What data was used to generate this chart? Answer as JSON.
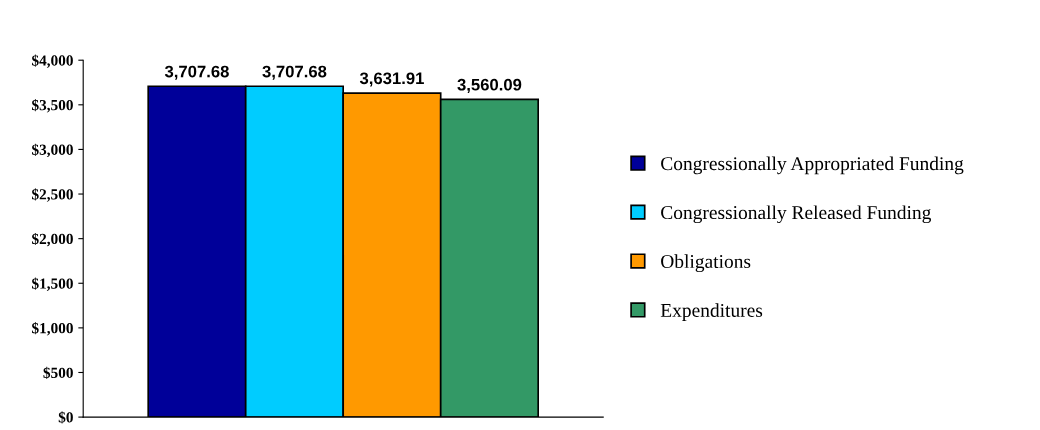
{
  "chart_data": {
    "type": "bar",
    "categories": [
      null
    ],
    "series": [
      {
        "name": "Congressionally Appropriated Funding",
        "color": "#000099",
        "values": [
          3707.68
        ],
        "value_labels": [
          "3,707.68"
        ]
      },
      {
        "name": "Congressionally Released Funding",
        "color": "#00ccff",
        "values": [
          3707.68
        ],
        "value_labels": [
          "3,707.68"
        ]
      },
      {
        "name": "Obligations",
        "color": "#ff9900",
        "values": [
          3631.91
        ],
        "value_labels": [
          "3,631.91"
        ]
      },
      {
        "name": "Expenditures",
        "color": "#339966",
        "values": [
          3560.09
        ],
        "value_labels": [
          "3,560.09"
        ]
      }
    ],
    "ylim": [
      0,
      4000
    ],
    "yticks": [
      {
        "value": 0,
        "label": "$0"
      },
      {
        "value": 500,
        "label": "$500"
      },
      {
        "value": 1000,
        "label": "$1,000"
      },
      {
        "value": 1500,
        "label": "$1,500"
      },
      {
        "value": 2000,
        "label": "$2,000"
      },
      {
        "value": 2500,
        "label": "$2,500"
      },
      {
        "value": 3000,
        "label": "$3,000"
      },
      {
        "value": 3500,
        "label": "$3,500"
      },
      {
        "value": 4000,
        "label": "$4,000"
      }
    ],
    "grid": false,
    "legend": "right"
  }
}
